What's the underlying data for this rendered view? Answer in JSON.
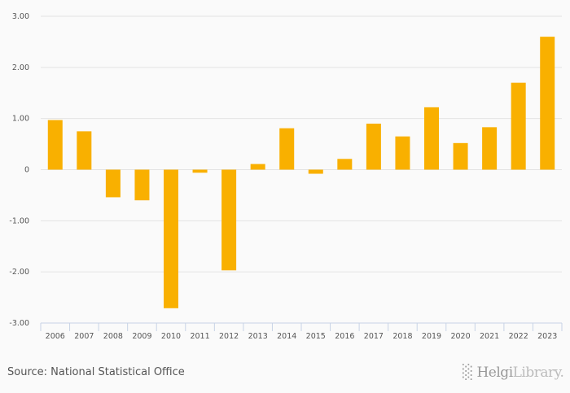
{
  "chart_data": {
    "type": "bar",
    "title": "",
    "xlabel": "",
    "ylabel": "",
    "categories": [
      "2006",
      "2007",
      "2008",
      "2009",
      "2010",
      "2011",
      "2012",
      "2013",
      "2014",
      "2015",
      "2016",
      "2017",
      "2018",
      "2019",
      "2020",
      "2021",
      "2022",
      "2023"
    ],
    "values": [
      0.97,
      0.75,
      -0.54,
      -0.6,
      -2.71,
      -0.06,
      -1.97,
      0.11,
      0.81,
      -0.08,
      0.21,
      0.9,
      0.65,
      1.22,
      0.52,
      0.83,
      1.7,
      2.6
    ],
    "ylim": [
      -3,
      3
    ],
    "yticks": [
      3,
      2,
      1,
      0,
      -1,
      -2,
      -3
    ],
    "ytick_labels": [
      "3.00",
      "2.00",
      "1.00",
      "0",
      "-1.00",
      "-2.00",
      "-3.00"
    ],
    "grid": true,
    "bar_color": "#F9B000"
  },
  "footer": {
    "source": "Source: National Statistical Office",
    "logo_text_1": "Helgi",
    "logo_text_2": "Library."
  }
}
